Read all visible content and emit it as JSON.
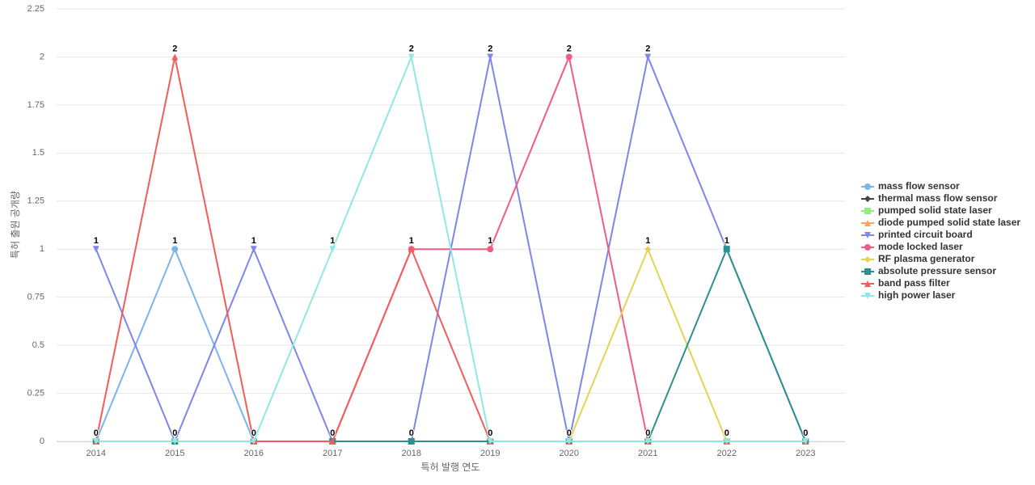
{
  "chart_data": {
    "type": "line",
    "x_label": "특허 발행 연도",
    "y_label": "특허 출원 공개량",
    "categories": [
      "2014",
      "2015",
      "2016",
      "2017",
      "2018",
      "2019",
      "2020",
      "2021",
      "2022",
      "2023"
    ],
    "ylim": [
      0,
      2.25
    ],
    "yticks": [
      0,
      0.25,
      0.5,
      0.75,
      1,
      1.25,
      1.5,
      1.75,
      2,
      2.25
    ],
    "grid": true,
    "legend": "right",
    "series": [
      {
        "name": "mass flow sensor",
        "color": "#7cb5ec",
        "marker": "circle",
        "values": [
          0,
          1,
          0,
          0,
          0,
          0,
          0,
          0,
          0,
          0
        ]
      },
      {
        "name": "thermal mass flow sensor",
        "color": "#434348",
        "marker": "diamond",
        "values": [
          0,
          0,
          0,
          0,
          0,
          0,
          0,
          0,
          0,
          0
        ]
      },
      {
        "name": "pumped solid state laser",
        "color": "#90ed7d",
        "marker": "square",
        "values": [
          0,
          0,
          0,
          0,
          0,
          0,
          0,
          0,
          0,
          0
        ]
      },
      {
        "name": "diode pumped solid state laser",
        "color": "#f7a35c",
        "marker": "triangle",
        "values": [
          0,
          0,
          0,
          0,
          0,
          0,
          0,
          0,
          0,
          0
        ]
      },
      {
        "name": "printed circuit board",
        "color": "#8085e9",
        "marker": "triangle-down",
        "values": [
          1,
          0,
          1,
          0,
          0,
          2,
          0,
          2,
          1,
          0
        ]
      },
      {
        "name": "mode locked laser",
        "color": "#f15c80",
        "marker": "circle",
        "values": [
          0,
          0,
          0,
          0,
          1,
          1,
          2,
          0,
          0,
          0
        ]
      },
      {
        "name": "RF plasma generator",
        "color": "#e4d354",
        "marker": "diamond",
        "values": [
          0,
          0,
          0,
          0,
          0,
          0,
          0,
          1,
          0,
          0
        ]
      },
      {
        "name": "absolute pressure sensor",
        "color": "#2b908f",
        "marker": "square",
        "values": [
          0,
          0,
          0,
          0,
          0,
          0,
          0,
          0,
          1,
          0
        ]
      },
      {
        "name": "band pass filter",
        "color": "#f45b5b",
        "marker": "triangle",
        "values": [
          0,
          2,
          0,
          0,
          1,
          0,
          0,
          0,
          0,
          0
        ]
      },
      {
        "name": "high power laser",
        "color": "#91e8e1",
        "marker": "triangle-down",
        "values": [
          0,
          0,
          0,
          1,
          2,
          0,
          0,
          0,
          0,
          0
        ]
      }
    ]
  }
}
